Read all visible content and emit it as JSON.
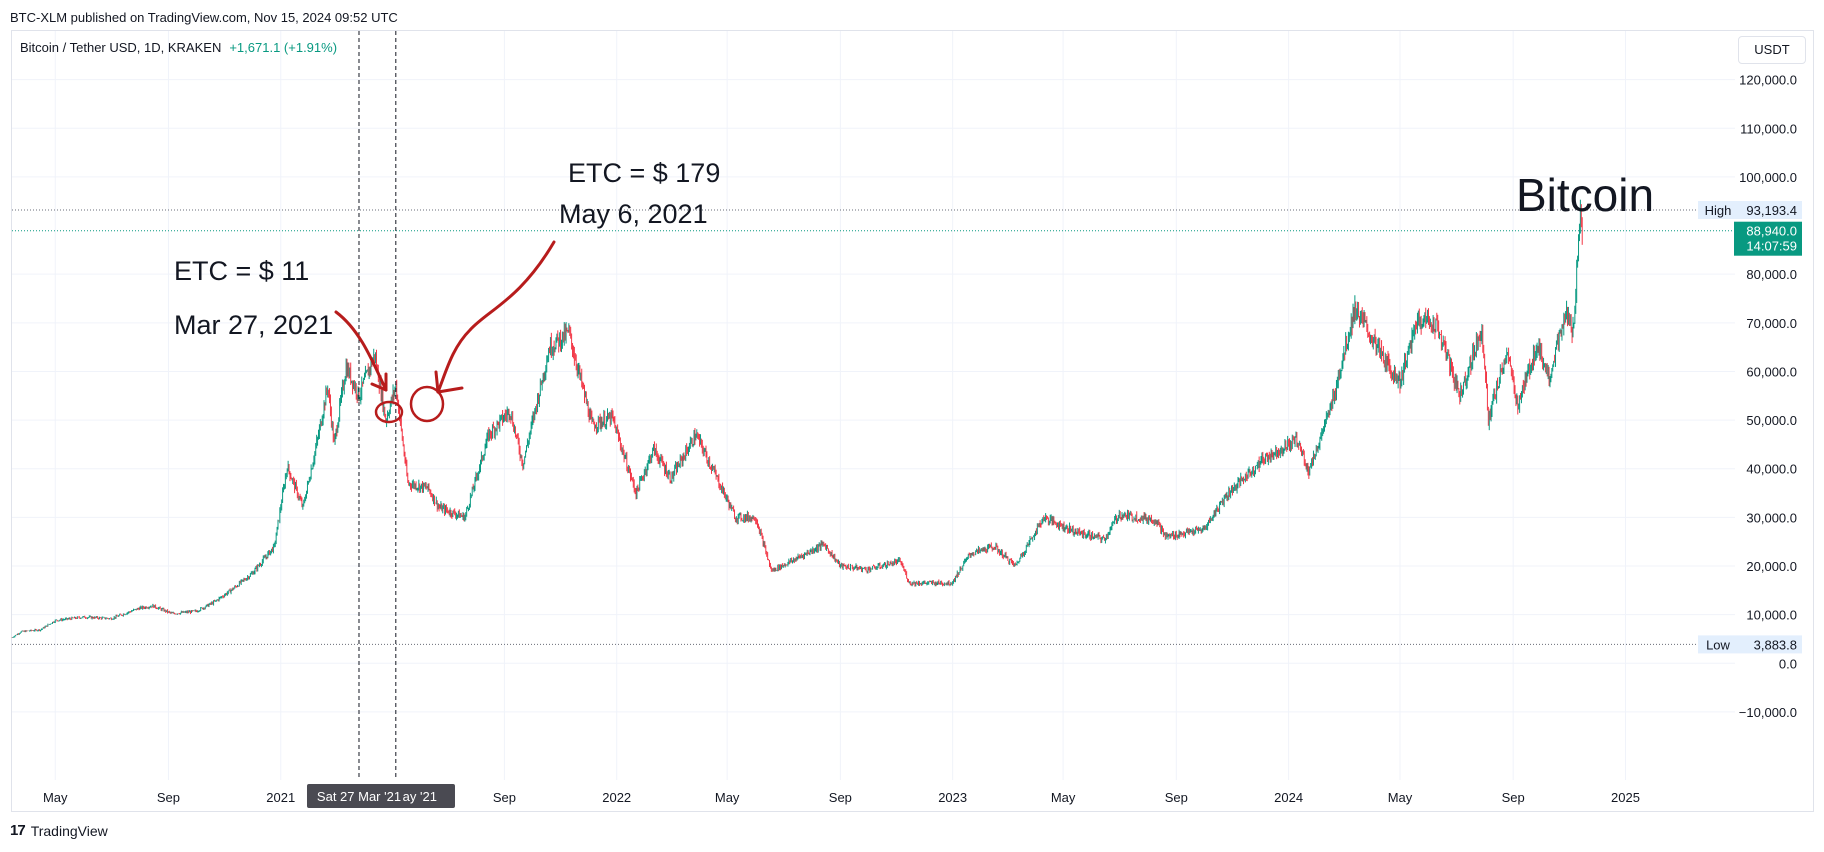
{
  "header": {
    "published_text": "BTC-XLM published on TradingView.com, Nov 15, 2024 09:52 UTC"
  },
  "legend": {
    "symbol": "Bitcoin / Tether USD, 1D, KRAKEN",
    "change": "+1,671.1 (+1.91%)"
  },
  "currency_button": "USDT",
  "colors": {
    "up": "#089981",
    "down": "#f23645",
    "annotation": "#b71c1c",
    "price_badge": "#089981",
    "grid": "#f0f3fa"
  },
  "annotations": {
    "etc_price_1": "ETC = $ 11",
    "etc_date_1": "Mar 27, 2021",
    "etc_price_2": "ETC = $ 179",
    "etc_date_2": "May 6, 2021",
    "asset_label": "Bitcoin"
  },
  "crosshair_label": "Sat 27 Mar '21",
  "crosshair_label_2": "ay '21",
  "footer": {
    "brand": "TradingView"
  },
  "chart_data": {
    "type": "candlestick",
    "x_range": [
      "2020-03-15",
      "2025-04-30"
    ],
    "y_range": [
      -24000,
      130000
    ],
    "y_ticks": [
      -10000,
      0,
      10000,
      20000,
      30000,
      40000,
      50000,
      60000,
      70000,
      80000,
      100000,
      110000,
      120000
    ],
    "y_tick_labels": [
      "−10,000.0",
      "0.0",
      "10,000.0",
      "20,000.0",
      "30,000.0",
      "40,000.0",
      "50,000.0",
      "60,000.0",
      "70,000.0",
      "80,000.0",
      "100,000.0",
      "110,000.0",
      "120,000.0"
    ],
    "x_ticks": [
      {
        "label": "May",
        "date": "2020-05-01"
      },
      {
        "label": "Sep",
        "date": "2020-09-01"
      },
      {
        "label": "2021",
        "date": "2021-01-01"
      },
      {
        "label": "Sep",
        "date": "2021-09-01"
      },
      {
        "label": "2022",
        "date": "2022-01-01"
      },
      {
        "label": "May",
        "date": "2022-05-01"
      },
      {
        "label": "Sep",
        "date": "2022-09-01"
      },
      {
        "label": "2023",
        "date": "2023-01-01"
      },
      {
        "label": "May",
        "date": "2023-05-01"
      },
      {
        "label": "Sep",
        "date": "2023-09-01"
      },
      {
        "label": "2024",
        "date": "2024-01-01"
      },
      {
        "label": "May",
        "date": "2024-05-01"
      },
      {
        "label": "Sep",
        "date": "2024-09-01"
      },
      {
        "label": "2025",
        "date": "2025-01-01"
      }
    ],
    "high": {
      "label": "High",
      "value": 93193.4,
      "value_label": "93,193.4"
    },
    "low": {
      "label": "Low",
      "value": 3883.8,
      "value_label": "3,883.8"
    },
    "last": {
      "value": 88940.0,
      "value_label": "88,940.0",
      "countdown": "14:07:59"
    },
    "markers": [
      "2021-03-27",
      "2021-05-06"
    ],
    "price_path": [
      [
        "2020-03-15",
        5300
      ],
      [
        "2020-03-25",
        6500
      ],
      [
        "2020-04-15",
        6900
      ],
      [
        "2020-05-01",
        8800
      ],
      [
        "2020-06-01",
        9500
      ],
      [
        "2020-07-01",
        9200
      ],
      [
        "2020-07-31",
        11300
      ],
      [
        "2020-08-15",
        11800
      ],
      [
        "2020-09-05",
        10200
      ],
      [
        "2020-10-01",
        10700
      ],
      [
        "2020-10-20",
        12500
      ],
      [
        "2020-11-10",
        15300
      ],
      [
        "2020-12-01",
        18500
      ],
      [
        "2020-12-25",
        24000
      ],
      [
        "2021-01-08",
        40500
      ],
      [
        "2021-01-25",
        32000
      ],
      [
        "2021-02-10",
        46000
      ],
      [
        "2021-02-21",
        57000
      ],
      [
        "2021-02-28",
        45000
      ],
      [
        "2021-03-13",
        61000
      ],
      [
        "2021-03-27",
        55000
      ],
      [
        "2021-04-13",
        63500
      ],
      [
        "2021-04-25",
        50000
      ],
      [
        "2021-05-06",
        57000
      ],
      [
        "2021-05-19",
        37000
      ],
      [
        "2021-06-10",
        36000
      ],
      [
        "2021-06-22",
        32000
      ],
      [
        "2021-07-20",
        30000
      ],
      [
        "2021-08-15",
        47000
      ],
      [
        "2021-09-07",
        52000
      ],
      [
        "2021-09-21",
        41000
      ],
      [
        "2021-10-20",
        65000
      ],
      [
        "2021-11-10",
        68000
      ],
      [
        "2021-12-05",
        49000
      ],
      [
        "2021-12-27",
        50500
      ],
      [
        "2022-01-22",
        35000
      ],
      [
        "2022-02-10",
        44000
      ],
      [
        "2022-03-01",
        38000
      ],
      [
        "2022-03-28",
        47000
      ],
      [
        "2022-04-15",
        40000
      ],
      [
        "2022-05-10",
        30000
      ],
      [
        "2022-06-01",
        30000
      ],
      [
        "2022-06-18",
        19000
      ],
      [
        "2022-07-10",
        21000
      ],
      [
        "2022-08-14",
        24500
      ],
      [
        "2022-09-01",
        20000
      ],
      [
        "2022-10-01",
        19300
      ],
      [
        "2022-11-05",
        21000
      ],
      [
        "2022-11-15",
        16500
      ],
      [
        "2022-12-31",
        16500
      ],
      [
        "2023-01-20",
        22500
      ],
      [
        "2023-02-15",
        24000
      ],
      [
        "2023-03-10",
        20000
      ],
      [
        "2023-04-10",
        30000
      ],
      [
        "2023-05-15",
        27000
      ],
      [
        "2023-06-15",
        25500
      ],
      [
        "2023-06-30",
        30500
      ],
      [
        "2023-08-10",
        29500
      ],
      [
        "2023-08-20",
        26000
      ],
      [
        "2023-10-01",
        27500
      ],
      [
        "2023-10-25",
        34500
      ],
      [
        "2023-12-05",
        42000
      ],
      [
        "2024-01-10",
        46000
      ],
      [
        "2024-01-23",
        39500
      ],
      [
        "2024-02-15",
        52000
      ],
      [
        "2024-03-13",
        73000
      ],
      [
        "2024-04-15",
        62000
      ],
      [
        "2024-05-01",
        58000
      ],
      [
        "2024-05-21",
        71000
      ],
      [
        "2024-06-10",
        69500
      ],
      [
        "2024-07-05",
        55000
      ],
      [
        "2024-07-29",
        69000
      ],
      [
        "2024-08-05",
        50000
      ],
      [
        "2024-08-25",
        64000
      ],
      [
        "2024-09-06",
        53000
      ],
      [
        "2024-09-27",
        65500
      ],
      [
        "2024-10-10",
        59000
      ],
      [
        "2024-10-29",
        72000
      ],
      [
        "2024-11-05",
        68000
      ],
      [
        "2024-11-13",
        93193
      ],
      [
        "2024-11-15",
        88940
      ]
    ]
  }
}
